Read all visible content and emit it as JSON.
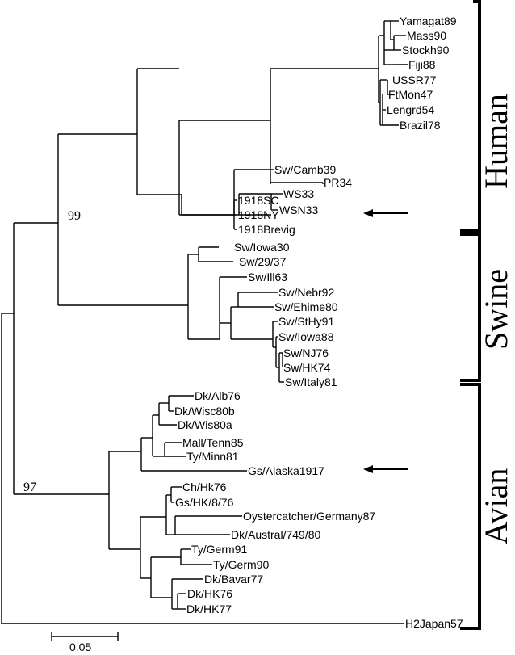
{
  "leaves": {
    "yamagat89": "Yamagat89",
    "mass90": "Mass90",
    "stockh90": "Stockh90",
    "fiji88": "Fiji88",
    "ussr77": "USSR77",
    "ftmon47": "FtMon47",
    "lengrd54": "Lengrd54",
    "brazil78": "Brazil78",
    "pr34": "PR34",
    "swcamb39": "Sw/Camb39",
    "ws33": "WS33",
    "wsn33": "WSN33",
    "sc1918": "1918SC",
    "ny1918": "1918NY",
    "brevig1918": "1918Brevig",
    "swiowa30": "Sw/Iowa30",
    "sw2937": "Sw/29/37",
    "swill63": "Sw/Ill63",
    "swnebr92": "Sw/Nebr92",
    "swehime80": "Sw/Ehime80",
    "swsthy91": "Sw/StHy91",
    "swiowa88": "Sw/Iowa88",
    "swnj76": "Sw/NJ76",
    "swhk74": "Sw/HK74",
    "switaly81": "Sw/Italy81",
    "dkalb76": "Dk/Alb76",
    "dkwisc80b": "Dk/Wisc80b",
    "dkwis80a": "Dk/Wis80a",
    "malltenn85": "Mall/Tenn85",
    "tyminn81": "Ty/Minn81",
    "gsalaska1917": "Gs/Alaska1917",
    "chhk76": "Ch/Hk76",
    "gshk876": "Gs/HK/8/76",
    "oystercatcher": "Oystercatcher/Germany87",
    "dkaustral": "Dk/Austral/749/80",
    "tygerm91": "Ty/Germ91",
    "tygerm90": "Ty/Germ90",
    "dkbavar77": "Dk/Bavar77",
    "dkhk76": "Dk/HK76",
    "dkhk77": "Dk/HK77",
    "h2japan57": "H2Japan57"
  },
  "bootstrap": {
    "upper": "99",
    "lower": "97"
  },
  "groups": {
    "human": "Human",
    "swine": "Swine",
    "avian": "Avian"
  },
  "scale_label": "0.05"
}
